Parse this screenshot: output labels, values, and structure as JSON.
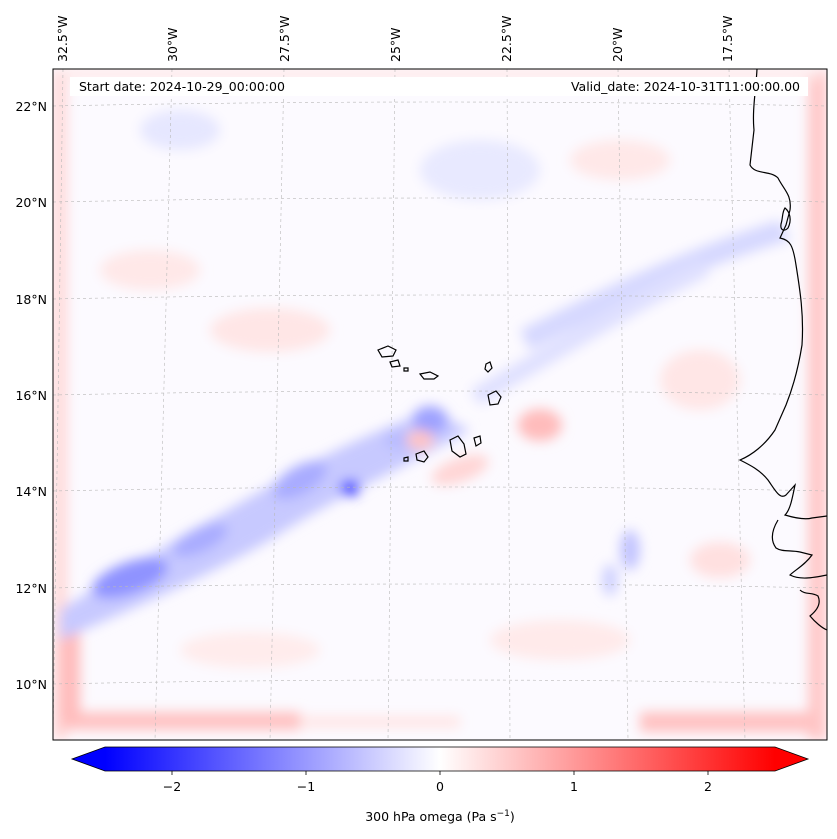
{
  "header": {
    "start_date": "Start date: 2024-10-29_00:00:00",
    "valid_date": "Valid_date: 2024-10-31T11:00:00.00"
  },
  "axes": {
    "lon_labels": [
      "32.5°W",
      "30°W",
      "27.5°W",
      "25°W",
      "22.5°W",
      "20°W",
      "17.5°W"
    ],
    "lat_labels": [
      "22°N",
      "20°N",
      "18°N",
      "16°N",
      "14°N",
      "12°N",
      "10°N"
    ]
  },
  "colorbar": {
    "label": "300 hPa omega (Pa s",
    "label_superscript": "−1",
    "label_close": ")",
    "ticks": [
      "−2",
      "−1",
      "0",
      "1",
      "2"
    ],
    "min": -2.6,
    "max": 2.6,
    "colors": {
      "negative": "#0000ff",
      "zero": "#ffffff",
      "positive": "#ff0000"
    }
  },
  "map": {
    "field": "300 hPa omega",
    "coastline_color": "#000000",
    "gridline_color": "#b0b0b0"
  }
}
